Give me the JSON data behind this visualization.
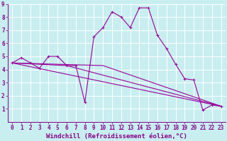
{
  "xlabel": "Windchill (Refroidissement éolien,°C)",
  "xlim": [
    -0.5,
    23.5
  ],
  "ylim": [
    0,
    9
  ],
  "xticks": [
    0,
    1,
    2,
    3,
    4,
    5,
    6,
    7,
    8,
    9,
    10,
    11,
    12,
    13,
    14,
    15,
    16,
    17,
    18,
    19,
    20,
    21,
    22,
    23
  ],
  "yticks": [
    1,
    2,
    3,
    4,
    5,
    6,
    7,
    8,
    9
  ],
  "bg_color": "#c8eef0",
  "line_color": "#990099",
  "grid_color": "#ffffff",
  "line1_x": [
    0,
    1,
    2,
    3,
    4,
    5,
    6,
    7,
    8,
    9,
    10,
    11,
    12,
    13,
    14,
    15,
    16,
    17,
    18,
    19,
    20,
    21,
    22,
    23
  ],
  "line1_y": [
    4.5,
    4.9,
    4.5,
    4.1,
    5.0,
    5.0,
    4.3,
    4.3,
    1.5,
    6.5,
    7.2,
    8.4,
    8.0,
    7.2,
    8.7,
    8.7,
    6.6,
    5.6,
    4.4,
    3.3,
    3.2,
    0.9,
    1.3,
    1.2
  ],
  "line2_x": [
    0,
    23
  ],
  "line2_y": [
    4.5,
    1.2
  ],
  "line3_x": [
    0,
    6,
    23
  ],
  "line3_y": [
    4.5,
    4.3,
    1.2
  ],
  "line4_x": [
    0,
    10,
    23
  ],
  "line4_y": [
    4.5,
    4.3,
    1.2
  ],
  "font_color": "#880088",
  "tick_fontsize": 5.5,
  "label_fontsize": 6.5
}
